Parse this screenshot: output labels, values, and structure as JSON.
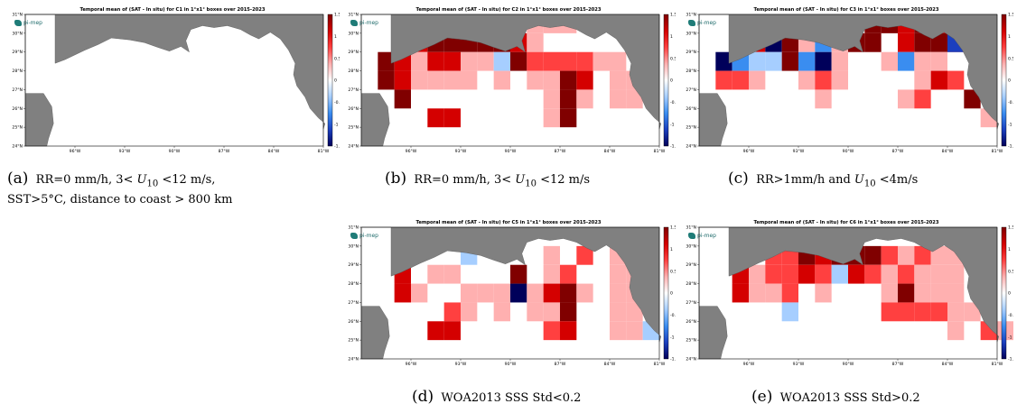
{
  "colorbar": {
    "ticks": [
      "1.5",
      "1",
      "0.5",
      "0",
      "-0.5",
      "-1",
      "-1.5"
    ],
    "colors": [
      "#00005a",
      "#1b3fbf",
      "#3a8df0",
      "#a6ceff",
      "#ffffff",
      "#ffb0b0",
      "#ff4040",
      "#d40000",
      "#800000"
    ]
  },
  "map": {
    "lat_labels": [
      "31°N",
      "30°N",
      "29°N",
      "28°N",
      "27°N",
      "26°N",
      "25°N",
      "24°N"
    ],
    "lon_labels": [
      "96°W",
      "93°W",
      "90°W",
      "87°W",
      "84°W",
      "81°W"
    ],
    "logo_text": "pi-mep",
    "land_color": "#808080",
    "ocean_color": "#ffffff"
  },
  "panels": [
    {
      "id": "a",
      "title": "Temporal mean of (SAT - In situ) for C1 in 1°x1° boxes over 2015-2023",
      "caption_tag": "(a)",
      "caption_lines": [
        "RR=0 mm/h, 3< U10 <12 m/s,",
        "SST>5°C, distance to coast > 800 km"
      ],
      "cells": []
    },
    {
      "id": "b",
      "title": "Temporal mean of (SAT - In situ) for C2 in 1°x1° boxes over 2015-2023",
      "caption_tag": "(b)",
      "caption_lines": [
        "RR=0 mm/h, 3< U10 <12 m/s"
      ],
      "cells": [
        [
          -97,
          29,
          1.5
        ],
        [
          -96,
          29,
          1.0
        ],
        [
          -95,
          29,
          1.3
        ],
        [
          -94,
          29,
          1.5
        ],
        [
          -93,
          29,
          1.3
        ],
        [
          -92,
          29,
          1.5
        ],
        [
          -91,
          29,
          1.4
        ],
        [
          -90,
          29,
          1.1
        ],
        [
          -89,
          29,
          0.3
        ],
        [
          -98,
          28,
          1.5
        ],
        [
          -97,
          28,
          1.1
        ],
        [
          -96,
          28,
          0.4
        ],
        [
          -95,
          28,
          0.9
        ],
        [
          -94,
          28,
          1.0
        ],
        [
          -93,
          28,
          0.3
        ],
        [
          -92,
          28,
          0.2
        ],
        [
          -91,
          28,
          -0.3
        ],
        [
          -90,
          28,
          1.5
        ],
        [
          -89,
          28,
          0.7
        ],
        [
          -88,
          28,
          0.8
        ],
        [
          -87,
          28,
          0.5
        ],
        [
          -86,
          28,
          0.6
        ],
        [
          -85,
          28,
          0.3
        ],
        [
          -84,
          28,
          0.2
        ],
        [
          -98,
          27,
          1.5
        ],
        [
          -97,
          27,
          1.2
        ],
        [
          -96,
          27,
          0.3
        ],
        [
          -95,
          27,
          0.3
        ],
        [
          -94,
          27,
          0.4
        ],
        [
          -93,
          27,
          0.2
        ],
        [
          -91,
          27,
          0.1
        ],
        [
          -89,
          27,
          0.3
        ],
        [
          -88,
          27,
          0.2
        ],
        [
          -87,
          27,
          1.5
        ],
        [
          -86,
          27,
          1.1
        ],
        [
          -84,
          27,
          0.2
        ],
        [
          -83,
          27,
          0.2
        ],
        [
          -97,
          26,
          1.5
        ],
        [
          -88,
          26,
          0.2
        ],
        [
          -87,
          26,
          1.5
        ],
        [
          -86,
          26,
          0.2
        ],
        [
          -84,
          26,
          0.3
        ],
        [
          -83,
          26,
          0.2
        ],
        [
          -95,
          25,
          1.0
        ],
        [
          -94,
          25,
          1.0
        ],
        [
          -88,
          25,
          0.3
        ],
        [
          -87,
          25,
          1.5
        ],
        [
          -89,
          30,
          0.2
        ],
        [
          -88,
          30,
          0.3
        ],
        [
          -87,
          30,
          0.4
        ]
      ]
    },
    {
      "id": "c",
      "title": "Temporal mean of (SAT - In situ) for C3 in 1°x1° boxes over 2015-2023",
      "caption_tag": "(c)",
      "caption_lines": [
        "RR>1mm/h and U10 <4m/s"
      ],
      "cells": [
        [
          -97,
          29,
          1.3
        ],
        [
          -96,
          29,
          1.0
        ],
        [
          -95,
          29,
          -1.3
        ],
        [
          -94,
          29,
          1.5
        ],
        [
          -93,
          29,
          0.2
        ],
        [
          -92,
          29,
          -0.5
        ],
        [
          -91,
          29,
          0.3
        ],
        [
          -90,
          29,
          1.5
        ],
        [
          -89,
          29,
          1.5
        ],
        [
          -87,
          29,
          1.1
        ],
        [
          -86,
          29,
          1.5
        ],
        [
          -85,
          29,
          1.5
        ],
        [
          -84,
          29,
          1.5
        ],
        [
          -83,
          29,
          0.4
        ],
        [
          -98,
          28,
          -1.5
        ],
        [
          -97,
          28,
          -0.5
        ],
        [
          -96,
          28,
          -0.3
        ],
        [
          -95,
          28,
          -0.3
        ],
        [
          -94,
          28,
          1.5
        ],
        [
          -93,
          28,
          -0.4
        ],
        [
          -92,
          28,
          -1.6
        ],
        [
          -91,
          28,
          0.3
        ],
        [
          -88,
          28,
          0.3
        ],
        [
          -87,
          28,
          -0.6
        ],
        [
          -86,
          28,
          0.3
        ],
        [
          -85,
          28,
          0.3
        ],
        [
          -98,
          27,
          0.7
        ],
        [
          -97,
          27,
          0.7
        ],
        [
          -96,
          27,
          0.3
        ],
        [
          -93,
          27,
          0.3
        ],
        [
          -92,
          27,
          0.6
        ],
        [
          -91,
          27,
          0.2
        ],
        [
          -86,
          27,
          0.2
        ],
        [
          -85,
          27,
          1.2
        ],
        [
          -84,
          27,
          0.8
        ],
        [
          -92,
          26,
          0.2
        ],
        [
          -87,
          26,
          0.2
        ],
        [
          -86,
          26,
          0.7
        ],
        [
          -83,
          26,
          1.3
        ],
        [
          -82,
          25,
          0.3
        ],
        [
          -89,
          30,
          1.5
        ],
        [
          -88,
          30,
          1.5
        ],
        [
          -87,
          30,
          1.1
        ],
        [
          -86,
          30,
          1.5
        ],
        [
          -85,
          30,
          1.2
        ],
        [
          -84,
          29,
          -0.8
        ]
      ]
    },
    {
      "id": "d",
      "title": "Temporal mean of (SAT - In situ) for C5 in 1°x1° boxes over 2015-2023",
      "caption_tag": "(d)",
      "caption_lines": [
        "WOA2013 SSS Std<0.2"
      ],
      "cells": [
        [
          -93,
          29,
          -0.3
        ],
        [
          -88,
          29,
          0.2
        ],
        [
          -86,
          29,
          0.7
        ],
        [
          -84,
          29,
          0.2
        ],
        [
          -83,
          29,
          0.3
        ],
        [
          -97,
          28,
          1.2
        ],
        [
          -95,
          28,
          0.2
        ],
        [
          -94,
          28,
          0.2
        ],
        [
          -90,
          28,
          1.5
        ],
        [
          -88,
          28,
          0.3
        ],
        [
          -87,
          28,
          0.6
        ],
        [
          -84,
          28,
          0.2
        ],
        [
          -83,
          28,
          0.2
        ],
        [
          -97,
          27,
          1.2
        ],
        [
          -96,
          27,
          0.3
        ],
        [
          -93,
          27,
          0.4
        ],
        [
          -92,
          27,
          0.4
        ],
        [
          -91,
          27,
          0.4
        ],
        [
          -90,
          27,
          -1.5
        ],
        [
          -89,
          27,
          0.4
        ],
        [
          -88,
          27,
          1.2
        ],
        [
          -87,
          27,
          1.5
        ],
        [
          -86,
          27,
          0.3
        ],
        [
          -84,
          27,
          0.2
        ],
        [
          -83,
          27,
          0.2
        ],
        [
          -94,
          26,
          0.7
        ],
        [
          -93,
          26,
          0.4
        ],
        [
          -91,
          26,
          0.3
        ],
        [
          -89,
          26,
          0.3
        ],
        [
          -88,
          26,
          0.2
        ],
        [
          -87,
          26,
          1.3
        ],
        [
          -84,
          26,
          0.2
        ],
        [
          -83,
          26,
          0.2
        ],
        [
          -95,
          25,
          0.9
        ],
        [
          -94,
          25,
          0.9
        ],
        [
          -88,
          25,
          0.6
        ],
        [
          -87,
          25,
          1.0
        ],
        [
          -84,
          25,
          0.2
        ],
        [
          -83,
          25,
          0.2
        ],
        [
          -82,
          25,
          -0.3
        ]
      ]
    },
    {
      "id": "e",
      "title": "Temporal mean of (SAT - In situ) for C6 in 1°x1° boxes over 2015-2023",
      "caption_tag": "(e)",
      "caption_lines": [
        "WOA2013 SSS Std>0.2"
      ],
      "cells": [
        [
          -95,
          29,
          0.8
        ],
        [
          -94,
          29,
          0.6
        ],
        [
          -93,
          29,
          1.4
        ],
        [
          -92,
          29,
          1.2
        ],
        [
          -91,
          29,
          1.3
        ],
        [
          -90,
          29,
          1.4
        ],
        [
          -89,
          29,
          1.5
        ],
        [
          -88,
          29,
          0.8
        ],
        [
          -87,
          29,
          0.2
        ],
        [
          -86,
          29,
          0.7
        ],
        [
          -85,
          29,
          0.3
        ],
        [
          -84,
          29,
          0.2
        ],
        [
          -97,
          28,
          1.0
        ],
        [
          -96,
          28,
          0.4
        ],
        [
          -95,
          28,
          0.7
        ],
        [
          -94,
          28,
          0.7
        ],
        [
          -93,
          28,
          0.9
        ],
        [
          -92,
          28,
          0.6
        ],
        [
          -91,
          28,
          -0.2
        ],
        [
          -90,
          28,
          0.9
        ],
        [
          -89,
          28,
          0.5
        ],
        [
          -88,
          28,
          0.3
        ],
        [
          -87,
          28,
          0.5
        ],
        [
          -86,
          28,
          0.2
        ],
        [
          -85,
          28,
          0.2
        ],
        [
          -84,
          28,
          0.2
        ],
        [
          -97,
          27,
          1.2
        ],
        [
          -96,
          27,
          0.3
        ],
        [
          -95,
          27,
          0.3
        ],
        [
          -94,
          27,
          0.7
        ],
        [
          -92,
          27,
          0.2
        ],
        [
          -88,
          27,
          0.3
        ],
        [
          -87,
          27,
          1.3
        ],
        [
          -86,
          27,
          0.2
        ],
        [
          -85,
          27,
          0.2
        ],
        [
          -84,
          27,
          0.2
        ],
        [
          -94,
          26,
          -0.3
        ],
        [
          -88,
          26,
          0.5
        ],
        [
          -87,
          26,
          0.6
        ],
        [
          -86,
          26,
          0.8
        ],
        [
          -85,
          26,
          0.6
        ],
        [
          -84,
          26,
          0.3
        ],
        [
          -83,
          26,
          0.2
        ],
        [
          -84,
          25,
          0.2
        ],
        [
          -82,
          25,
          0.8
        ],
        [
          -81,
          25,
          0.3
        ]
      ]
    }
  ]
}
